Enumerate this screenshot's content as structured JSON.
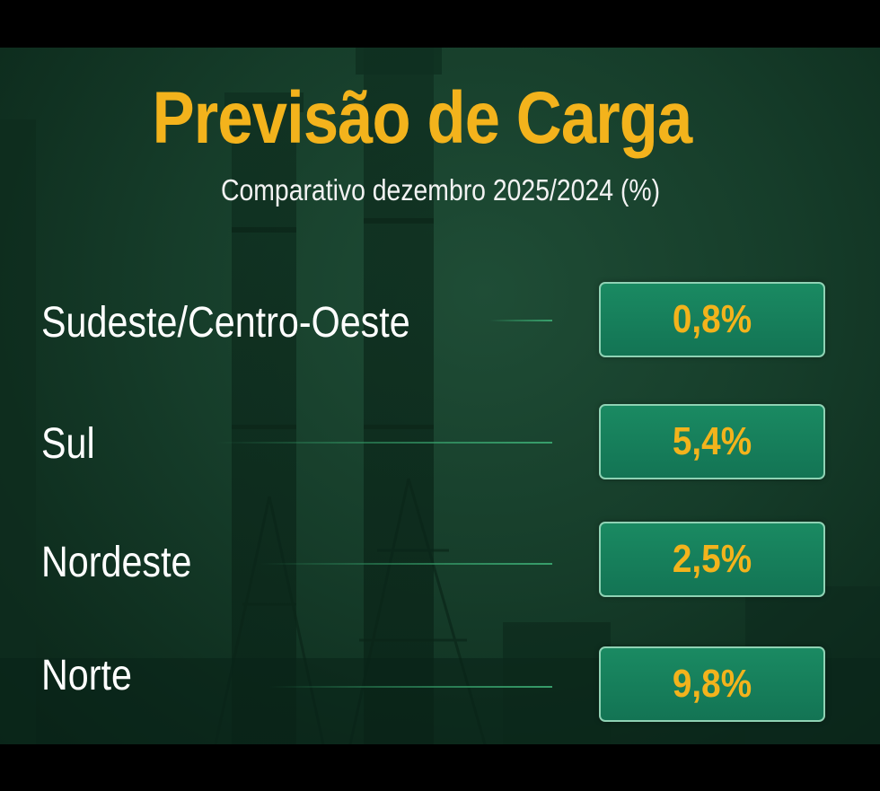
{
  "header": {
    "title": "Previsão de Carga",
    "subtitle": "Comparativo dezembro 2025/2024 (%)"
  },
  "rows": [
    {
      "label": "Sudeste/Centro-Oeste",
      "value": "0,8%"
    },
    {
      "label": "Sul",
      "value": "5,4%"
    },
    {
      "label": "Nordeste",
      "value": "2,5%"
    },
    {
      "label": "Norte",
      "value": "9,8%"
    }
  ],
  "colors": {
    "accent": "#f3b31c",
    "background": "#163d2a",
    "box": "#1a8a62",
    "box_border": "#8fd2b4",
    "text": "#ffffff"
  }
}
